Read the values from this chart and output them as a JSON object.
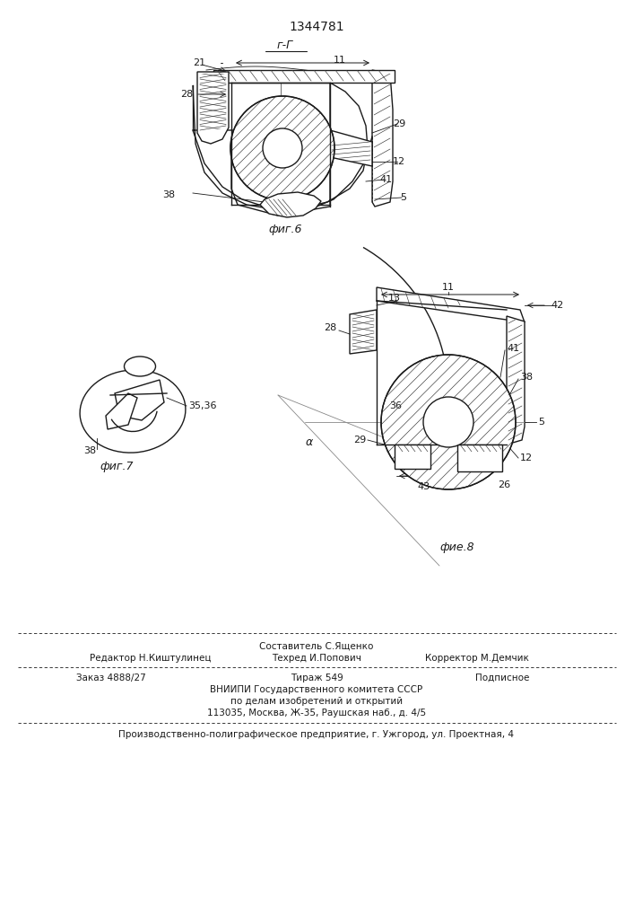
{
  "patent_number": "1344781",
  "section_label": "г-Г",
  "fig6_label": "фиг.6",
  "fig7_label": "фиг.7",
  "fig8_label": "фие.8",
  "line_color": "#1a1a1a",
  "footer_line0_center": "Составитель С.Ященко",
  "footer_line1_left": "Редактор Н.Киштулинец",
  "footer_line1_center": "Техред И.Попович",
  "footer_line1_right": "Корректор М.Демчик",
  "footer_line2_left": "Заказ 4888/27",
  "footer_line2_center": "Тираж 549",
  "footer_line2_right": "Подписное",
  "footer_line3": "ВНИИПИ Государственного комитета СССР",
  "footer_line4": "по делам изобретений и открытий",
  "footer_line5": "113035, Москва, Ж-35, Раушская наб., д. 4/5",
  "footer_line6": "Производственно-полиграфическое предприятие, г. Ужгород, ул. Проектная, 4",
  "angle_label": "α"
}
